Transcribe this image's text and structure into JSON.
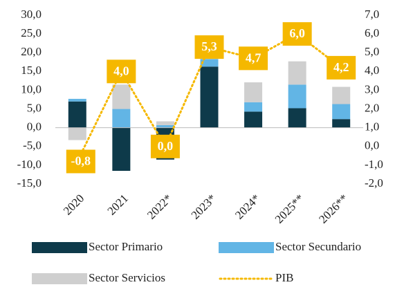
{
  "chart_data": {
    "type": "bar",
    "categories": [
      "2020",
      "2021",
      "2022*",
      "2023*",
      "2024*",
      "2025**",
      "2026**"
    ],
    "series": [
      {
        "name": "Sector Primario",
        "color": "#0e3a4a",
        "values": [
          7.0,
          -11.5,
          -8.5,
          16.3,
          4.3,
          5.2,
          2.3
        ]
      },
      {
        "name": "Sector Secundario",
        "color": "#62b5e5",
        "values": [
          0.7,
          5.0,
          0.7,
          2.0,
          2.5,
          6.3,
          4.0
        ]
      },
      {
        "name": "Sector Servicios",
        "color": "#cfcfcf",
        "values": [
          -3.3,
          6.5,
          1.0,
          0.5,
          5.3,
          6.2,
          4.6
        ]
      },
      {
        "name": "PIB",
        "color": "#f5b800",
        "type": "line",
        "axis": "y2",
        "values": [
          -0.8,
          4.0,
          0.0,
          5.3,
          4.7,
          6.0,
          4.2
        ],
        "value_labels": [
          "-0,8",
          "4,0",
          "0,0",
          "5,3",
          "4,7",
          "6,0",
          "4,2"
        ]
      }
    ],
    "ylim": [
      -15,
      30
    ],
    "yticks": [
      {
        "value": -15,
        "label": "-15,0"
      },
      {
        "value": -10,
        "label": "-10,0"
      },
      {
        "value": -5,
        "label": "-5,0"
      },
      {
        "value": 0,
        "label": "0,0"
      },
      {
        "value": 5,
        "label": "5,0"
      },
      {
        "value": 10,
        "label": "10,0"
      },
      {
        "value": 15,
        "label": "15,0"
      },
      {
        "value": 20,
        "label": "20,0"
      },
      {
        "value": 25,
        "label": "25,0"
      },
      {
        "value": 30,
        "label": "30,0"
      }
    ],
    "y2lim": [
      -2,
      7
    ],
    "y2ticks": [
      {
        "value": -2,
        "label": "-2,0"
      },
      {
        "value": -1,
        "label": "-1,0"
      },
      {
        "value": 0,
        "label": "0,0"
      },
      {
        "value": 1,
        "label": "1,0"
      },
      {
        "value": 2,
        "label": "2,0"
      },
      {
        "value": 3,
        "label": "3,0"
      },
      {
        "value": 4,
        "label": "4,0"
      },
      {
        "value": 5,
        "label": "5,0"
      },
      {
        "value": 6,
        "label": "6,0"
      },
      {
        "value": 7,
        "label": "7,0"
      }
    ],
    "grid": false
  }
}
